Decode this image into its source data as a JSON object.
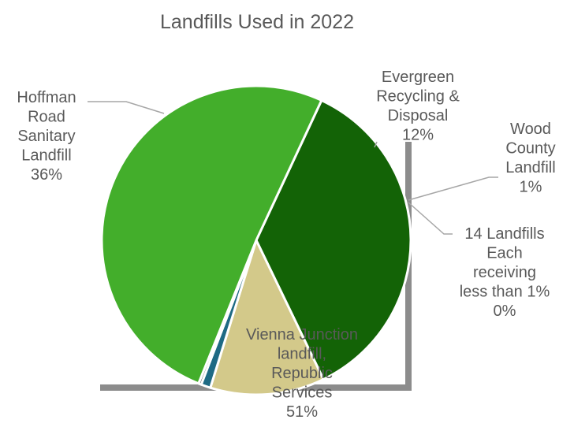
{
  "chart_data": {
    "type": "pie",
    "title": "Landfills Used in 2022",
    "slices": [
      {
        "label_lines": [
          "Hoffman",
          "Road",
          "Sanitary",
          "Landfill"
        ],
        "percent_label": "36%",
        "value": 36,
        "color": "#136306"
      },
      {
        "label_lines": [
          "Evergreen",
          "Recycling &",
          "Disposal"
        ],
        "percent_label": "12%",
        "value": 12,
        "color": "#d3c98a"
      },
      {
        "label_lines": [
          "Wood",
          "County",
          "Landfill"
        ],
        "percent_label": "1%",
        "value": 1,
        "color": "#1e6a84"
      },
      {
        "label_lines": [
          "14 Landfills",
          "Each",
          "receiving",
          "less than 1%"
        ],
        "percent_label": "0%",
        "value": 0.3,
        "color": "#6a6a6a"
      },
      {
        "label_lines": [
          "Vienna Junction",
          "landfill,",
          "Republic",
          "Services"
        ],
        "percent_label": "51%",
        "value": 51,
        "color": "#43ae2b"
      }
    ],
    "start_angle_deg": 25,
    "legend": "none"
  },
  "colors": {
    "background": "#ffffff",
    "text": "#595959",
    "leader_line": "#a6a6a6",
    "shadow": "#8c8c8c",
    "separator": "#ffffff"
  }
}
